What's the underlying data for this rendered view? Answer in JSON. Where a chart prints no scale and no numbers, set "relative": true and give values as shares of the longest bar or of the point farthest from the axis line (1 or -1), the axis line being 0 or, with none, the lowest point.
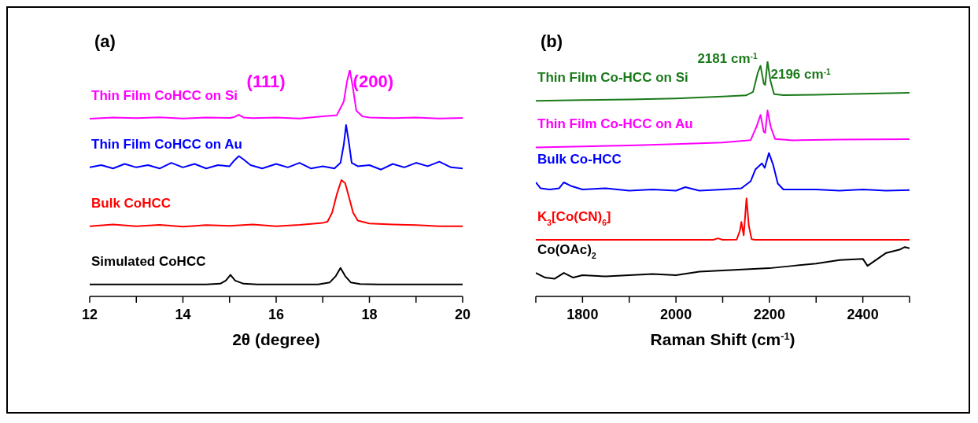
{
  "chart_data": [
    {
      "type": "line",
      "title": "(a)",
      "xlabel": "2θ (degree)",
      "relative": true,
      "xlim": [
        12,
        20
      ],
      "xticks": [
        12,
        {
          "value": 13,
          "label": null
        },
        14,
        {
          "value": 15,
          "label": null
        },
        16,
        {
          "value": 17,
          "label": null
        },
        18,
        {
          "value": 19,
          "label": null
        },
        20
      ],
      "annotations": [
        {
          "text": "(111)",
          "x": 15.2,
          "y": 0.802
        },
        {
          "text": "(200)",
          "x": 17.58,
          "y": 1.0
        }
      ],
      "series": [
        {
          "name": "Thin Film CoHCC on Si",
          "color": "#ff00ff",
          "x": [
            12,
            12.5,
            13,
            13.5,
            14,
            14.5,
            15,
            15.1,
            15.2,
            15.3,
            15.5,
            16,
            16.5,
            17,
            17.3,
            17.45,
            17.52,
            17.58,
            17.64,
            17.72,
            17.85,
            18,
            18.5,
            19,
            19.5,
            20
          ],
          "values": [
            0.785,
            0.79,
            0.787,
            0.791,
            0.786,
            0.79,
            0.788,
            0.792,
            0.802,
            0.79,
            0.787,
            0.79,
            0.786,
            0.795,
            0.8,
            0.86,
            0.95,
            1.0,
            0.93,
            0.82,
            0.795,
            0.79,
            0.787,
            0.79,
            0.786,
            0.788
          ]
        },
        {
          "name": "Thin Film CoHCC on Au",
          "color": "#0000ff",
          "x": [
            12,
            12.25,
            12.5,
            12.75,
            13,
            13.25,
            13.5,
            13.75,
            14,
            14.25,
            14.5,
            14.75,
            15,
            15.1,
            15.2,
            15.3,
            15.45,
            15.7,
            16,
            16.25,
            16.5,
            16.75,
            17,
            17.25,
            17.38,
            17.45,
            17.5,
            17.56,
            17.62,
            17.75,
            18,
            18.25,
            18.5,
            18.75,
            19,
            19.25,
            19.5,
            19.75,
            20
          ],
          "values": [
            0.57,
            0.58,
            0.565,
            0.585,
            0.57,
            0.58,
            0.565,
            0.59,
            0.57,
            0.585,
            0.565,
            0.58,
            0.575,
            0.6,
            0.62,
            0.605,
            0.58,
            0.565,
            0.585,
            0.57,
            0.59,
            0.565,
            0.575,
            0.565,
            0.59,
            0.67,
            0.757,
            0.68,
            0.59,
            0.575,
            0.58,
            0.56,
            0.585,
            0.57,
            0.59,
            0.575,
            0.595,
            0.57,
            0.565
          ]
        },
        {
          "name": "Bulk CoHCC",
          "color": "#ff0000",
          "x": [
            12,
            12.5,
            13,
            13.5,
            14,
            14.5,
            15,
            15.5,
            16,
            16.5,
            17,
            17.1,
            17.2,
            17.3,
            17.4,
            17.48,
            17.56,
            17.65,
            17.75,
            18,
            18.5,
            19,
            19.5,
            20
          ],
          "values": [
            0.31,
            0.318,
            0.31,
            0.316,
            0.308,
            0.315,
            0.312,
            0.318,
            0.31,
            0.316,
            0.325,
            0.33,
            0.37,
            0.45,
            0.514,
            0.5,
            0.44,
            0.37,
            0.335,
            0.322,
            0.318,
            0.315,
            0.31,
            0.31
          ]
        },
        {
          "name": "Simulated CoHCC",
          "color": "#000000",
          "x": [
            12,
            14.5,
            14.8,
            14.92,
            15.02,
            15.12,
            15.3,
            15.6,
            16.9,
            17.15,
            17.28,
            17.38,
            17.48,
            17.6,
            17.8,
            18.2,
            20
          ],
          "values": [
            0.053,
            0.053,
            0.056,
            0.07,
            0.095,
            0.07,
            0.056,
            0.053,
            0.053,
            0.062,
            0.09,
            0.126,
            0.09,
            0.062,
            0.055,
            0.053,
            0.053
          ]
        }
      ]
    },
    {
      "type": "line",
      "title": "(b)",
      "xlabel": "Raman Shift (cm$^{-1}$)",
      "relative": true,
      "xlim": [
        1700,
        2500
      ],
      "xticks": [
        {
          "value": 1700,
          "label": null
        },
        1800,
        {
          "value": 1900,
          "label": null
        },
        2000,
        {
          "value": 2100,
          "label": null
        },
        2200,
        {
          "value": 2300,
          "label": null
        },
        2400,
        {
          "value": 2500,
          "label": null
        }
      ],
      "annotations": [
        {
          "text": "2181 cm$^{-1}$",
          "x": 2181,
          "y": 0.981
        },
        {
          "text": "2196 cm$^{-1}$",
          "x": 2196,
          "y": 1.0
        }
      ],
      "series": [
        {
          "name": "Thin Film Co-HCC on Si",
          "color": "#1a7a1a",
          "x": [
            1700,
            1800,
            1900,
            2000,
            2100,
            2150,
            2165,
            2175,
            2181,
            2188,
            2191,
            2196,
            2202,
            2210,
            2230,
            2300,
            2400,
            2500
          ],
          "values": [
            0.832,
            0.835,
            0.838,
            0.842,
            0.85,
            0.855,
            0.87,
            0.95,
            0.981,
            0.905,
            0.9,
            1.0,
            0.92,
            0.86,
            0.856,
            0.858,
            0.862,
            0.866
          ]
        },
        {
          "name": "Thin Film Co-HCC on Au",
          "color": "#ff00ff",
          "x": [
            1700,
            1800,
            1900,
            2000,
            2100,
            2160,
            2172,
            2181,
            2188,
            2191,
            2196,
            2203,
            2212,
            2250,
            2350,
            2500
          ],
          "values": [
            0.634,
            0.638,
            0.642,
            0.648,
            0.655,
            0.665,
            0.72,
            0.772,
            0.7,
            0.696,
            0.791,
            0.72,
            0.67,
            0.664,
            0.667,
            0.669
          ]
        },
        {
          "name": "Bulk Co-HCC",
          "color": "#0000ff",
          "x": [
            1700,
            1710,
            1730,
            1750,
            1760,
            1775,
            1800,
            1850,
            1900,
            1950,
            2000,
            2020,
            2050,
            2100,
            2140,
            2160,
            2170,
            2184,
            2190,
            2199,
            2208,
            2218,
            2230,
            2300,
            2350,
            2400,
            2450,
            2500
          ],
          "values": [
            0.485,
            0.46,
            0.455,
            0.46,
            0.485,
            0.47,
            0.455,
            0.46,
            0.45,
            0.455,
            0.45,
            0.465,
            0.45,
            0.455,
            0.46,
            0.49,
            0.54,
            0.566,
            0.547,
            0.61,
            0.56,
            0.48,
            0.455,
            0.455,
            0.45,
            0.455,
            0.45,
            0.452
          ]
        },
        {
          "name": "K$_{3}$[Co(CN)$_{6}$]",
          "color": "#ff0000",
          "x": [
            1700,
            2080,
            2090,
            2100,
            2130,
            2137,
            2140,
            2145,
            2151,
            2156,
            2162,
            2170,
            2500
          ],
          "values": [
            0.241,
            0.241,
            0.247,
            0.241,
            0.242,
            0.28,
            0.317,
            0.26,
            0.417,
            0.3,
            0.243,
            0.241,
            0.241
          ]
        },
        {
          "name": "Co(OAc)$_{2}$",
          "color": "#000000",
          "x": [
            1700,
            1720,
            1740,
            1760,
            1780,
            1800,
            1850,
            1900,
            1950,
            2000,
            2050,
            2100,
            2150,
            2200,
            2250,
            2300,
            2350,
            2400,
            2410,
            2450,
            2480,
            2490,
            2500
          ],
          "values": [
            0.1,
            0.08,
            0.075,
            0.1,
            0.08,
            0.09,
            0.085,
            0.09,
            0.095,
            0.09,
            0.105,
            0.11,
            0.115,
            0.12,
            0.13,
            0.14,
            0.155,
            0.16,
            0.13,
            0.185,
            0.2,
            0.21,
            0.205
          ]
        }
      ]
    }
  ]
}
